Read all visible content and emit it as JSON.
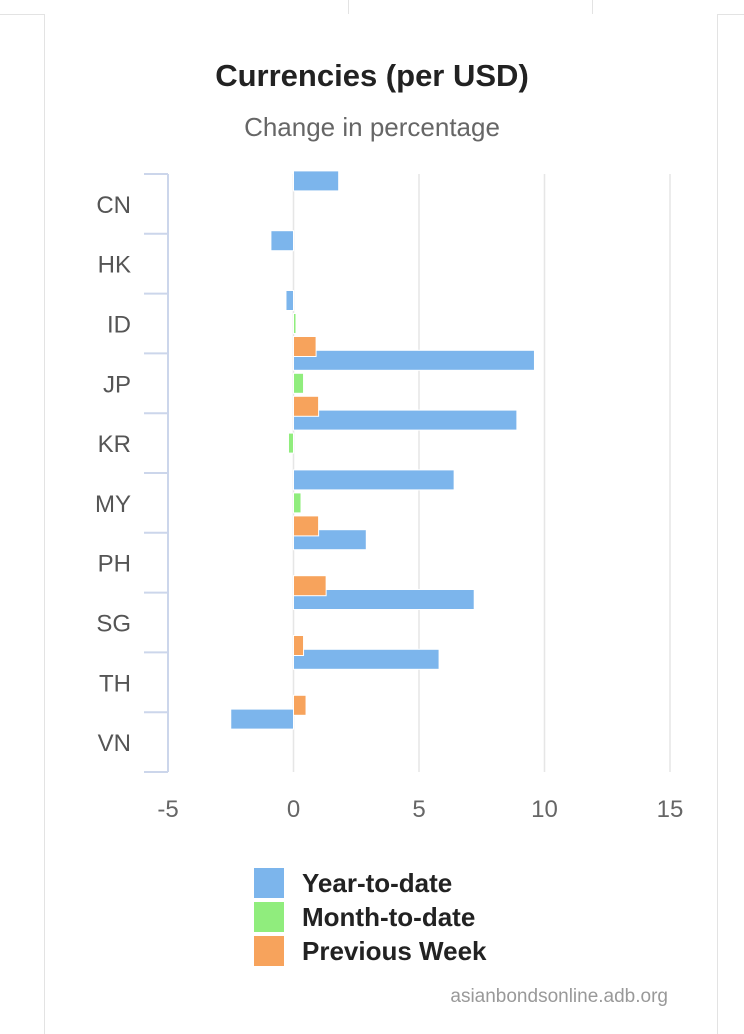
{
  "chart_data": {
    "type": "bar",
    "orientation": "horizontal",
    "title": "Currencies (per USD)",
    "subtitle": "Change in percentage",
    "categories": [
      "CN",
      "HK",
      "ID",
      "JP",
      "KR",
      "MY",
      "PH",
      "SG",
      "TH",
      "VN"
    ],
    "series": [
      {
        "name": "Year-to-date",
        "color": "#7cb5ec",
        "values": [
          1.8,
          -0.9,
          -0.3,
          9.6,
          8.9,
          6.4,
          2.9,
          7.2,
          5.8,
          -2.5
        ]
      },
      {
        "name": "Month-to-date",
        "color": "#90ed7d",
        "values": [
          0,
          0,
          0.1,
          0.4,
          -0.2,
          0.3,
          0,
          0,
          0,
          0
        ]
      },
      {
        "name": "Previous Week",
        "color": "#f7a35c",
        "values": [
          0,
          0,
          0.9,
          1.0,
          0,
          1.0,
          1.3,
          0.4,
          0.5,
          0
        ]
      }
    ],
    "xlim": [
      -5,
      15
    ],
    "xticks": [
      -5,
      0,
      5,
      10,
      15
    ],
    "grid": true,
    "legend_position": "bottom"
  },
  "credit": "asianbondsonline.adb.org"
}
